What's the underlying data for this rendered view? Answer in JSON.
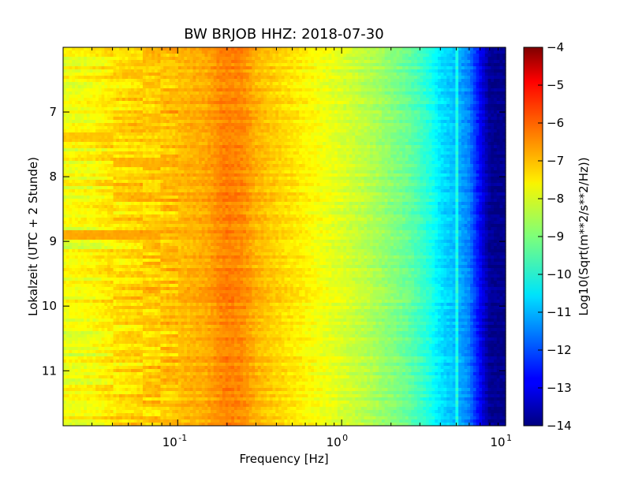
{
  "chart_data": {
    "type": "heatmap",
    "title": "BW BRJOB HHZ: 2018-07-30",
    "xlabel": "Frequency [Hz]",
    "ylabel": "Lokalzeit (UTC + 2 Stunde)",
    "x_scale": "log",
    "xlim": [
      0.02,
      10
    ],
    "x_ticks": [
      {
        "value": 0.1,
        "base": "10",
        "exp": "-1"
      },
      {
        "value": 1,
        "base": "10",
        "exp": "0"
      },
      {
        "value": 10,
        "base": "10",
        "exp": "1"
      }
    ],
    "ylim": [
      6,
      11.85
    ],
    "y_inverted": true,
    "y_ticks": [
      7,
      8,
      9,
      10,
      11
    ],
    "colorbar": {
      "label": "Log10(Sqrt(m**2/s**2/Hz))",
      "range": [
        -14,
        -4
      ],
      "ticks": [
        -4,
        -5,
        -6,
        -7,
        -8,
        -9,
        -10,
        -11,
        -12,
        -13,
        -14
      ],
      "colormap": "jet"
    },
    "spectrum_profile": {
      "frequency_hz": [
        0.02,
        0.03,
        0.04,
        0.06,
        0.08,
        0.1,
        0.12,
        0.15,
        0.18,
        0.2,
        0.25,
        0.3,
        0.4,
        0.5,
        0.7,
        1.0,
        1.5,
        2.0,
        2.5,
        3.0,
        3.5,
        4.0,
        5.0,
        6.0,
        7.0,
        8.0,
        10.0
      ],
      "log10_amplitude": [
        -7.9,
        -7.8,
        -7.5,
        -7.3,
        -7.2,
        -7.1,
        -7.0,
        -6.9,
        -6.6,
        -6.5,
        -6.6,
        -7.0,
        -7.3,
        -7.5,
        -7.8,
        -8.1,
        -8.5,
        -8.9,
        -9.2,
        -9.6,
        -10.0,
        -10.5,
        -10.9,
        -11.5,
        -12.8,
        -13.8,
        -13.9
      ]
    },
    "band_boundaries_hz": [
      0.04,
      0.06,
      0.08,
      0.1
    ],
    "notable_events": [
      {
        "time": 8.9,
        "frequency_range_hz": [
          0.02,
          0.08
        ],
        "log10_amplitude": -6.9
      },
      {
        "time": 7.8,
        "frequency_range_hz": [
          0.04,
          0.08
        ],
        "log10_amplitude": -7.0
      },
      {
        "time": 7.4,
        "frequency_range_hz": [
          0.02,
          0.04
        ],
        "log10_amplitude": -7.2
      }
    ],
    "spectral_line_hz": 5.0,
    "grid": false
  }
}
